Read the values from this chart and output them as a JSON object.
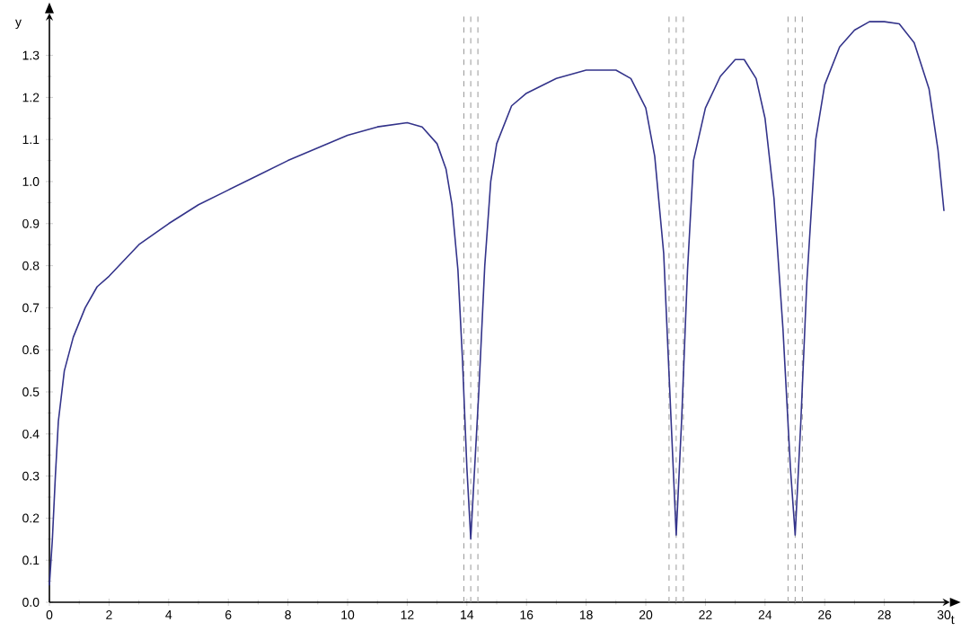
{
  "chart_data": {
    "type": "line",
    "xlabel": "t",
    "ylabel": "y",
    "xlim": [
      0,
      30.2
    ],
    "ylim": [
      0,
      1.4
    ],
    "xticks": [
      0,
      2,
      4,
      6,
      8,
      10,
      12,
      14,
      16,
      18,
      20,
      22,
      24,
      26,
      28,
      30
    ],
    "yticks": [
      {
        "value": 0,
        "label": "0.0"
      },
      0.1,
      0.2,
      0.3,
      0.4,
      0.5,
      0.6,
      0.7,
      0.8,
      0.9,
      {
        "value": 1,
        "label": "1.0"
      },
      1.1,
      1.2,
      1.3
    ],
    "marker": "none",
    "line_style": "solid",
    "series": [
      {
        "color": "#33338a",
        "x": [
          0,
          0.1,
          0.2,
          0.3,
          0.5,
          0.8,
          1.2,
          1.6,
          2,
          3,
          4,
          5,
          6,
          7,
          8,
          9,
          10,
          11,
          12,
          12.5,
          13,
          13.3,
          13.5,
          13.7,
          13.85,
          14,
          14.13,
          14.4,
          14.6,
          14.8,
          15,
          15.5,
          16,
          17,
          18,
          19,
          19.5,
          20,
          20.3,
          20.6,
          20.85,
          21.02,
          21.2,
          21.4,
          21.6,
          22,
          22.5,
          23,
          23.3,
          23.7,
          24,
          24.3,
          24.6,
          24.85,
          25.01,
          25.2,
          25.4,
          25.7,
          26,
          26.5,
          27,
          27.5,
          28,
          28.5,
          29,
          29.5,
          29.8,
          30
        ],
        "values": [
          0.04,
          0.15,
          0.3,
          0.43,
          0.55,
          0.63,
          0.7,
          0.75,
          0.775,
          0.85,
          0.9,
          0.945,
          0.98,
          1.015,
          1.05,
          1.08,
          1.11,
          1.13,
          1.14,
          1.13,
          1.09,
          1.03,
          0.945,
          0.79,
          0.58,
          0.32,
          0.15,
          0.5,
          0.8,
          1.0,
          1.09,
          1.18,
          1.21,
          1.245,
          1.265,
          1.265,
          1.245,
          1.175,
          1.06,
          0.83,
          0.43,
          0.16,
          0.43,
          0.79,
          1.05,
          1.175,
          1.25,
          1.29,
          1.29,
          1.245,
          1.15,
          0.96,
          0.65,
          0.32,
          0.16,
          0.43,
          0.76,
          1.1,
          1.23,
          1.32,
          1.36,
          1.38,
          1.38,
          1.375,
          1.33,
          1.22,
          1.075,
          0.93
        ]
      }
    ],
    "ref_lines": [
      {
        "axis": "x",
        "value": 13.9,
        "color": "#999999",
        "line_style": "dashed"
      },
      {
        "axis": "x",
        "value": 14.13,
        "color": "#999999",
        "line_style": "dashed"
      },
      {
        "axis": "x",
        "value": 14.37,
        "color": "#999999",
        "line_style": "dashed"
      },
      {
        "axis": "x",
        "value": 20.78,
        "color": "#999999",
        "line_style": "dashed"
      },
      {
        "axis": "x",
        "value": 21.02,
        "color": "#999999",
        "line_style": "dashed"
      },
      {
        "axis": "x",
        "value": 21.26,
        "color": "#999999",
        "line_style": "dashed"
      },
      {
        "axis": "x",
        "value": 24.77,
        "color": "#999999",
        "line_style": "dashed"
      },
      {
        "axis": "x",
        "value": 25.01,
        "color": "#999999",
        "line_style": "dashed"
      },
      {
        "axis": "x",
        "value": 25.25,
        "color": "#999999",
        "line_style": "dashed"
      }
    ]
  }
}
